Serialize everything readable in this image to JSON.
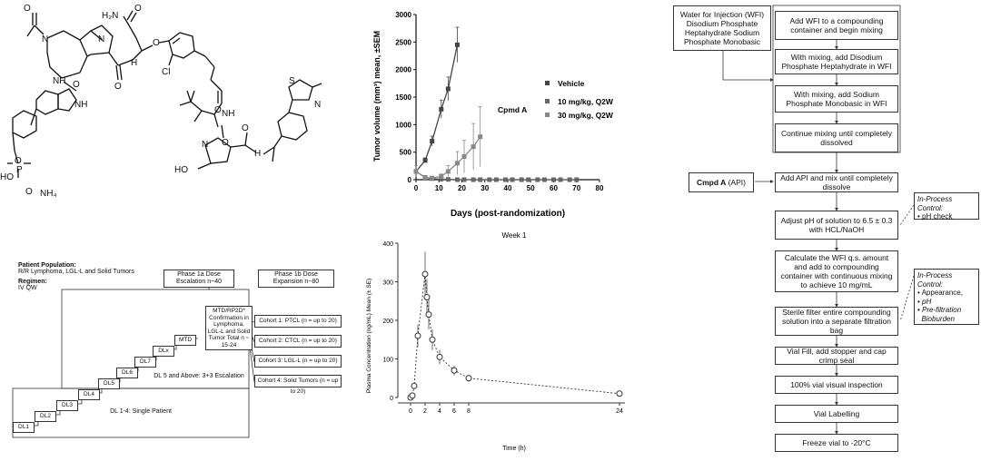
{
  "molecule": {
    "atoms": {
      "o_acetyl": "O",
      "n_ring1": "N",
      "h2n": "H₂N",
      "o_amide_top": "O",
      "n_ring2": "N",
      "o_ether": "O",
      "o_ring": "O",
      "nh_1": "NH",
      "nh_indole": "NH",
      "nh_2": "H",
      "o_carbonyl": "O",
      "cl": "Cl",
      "o_carbonyl2": "O",
      "s": "S",
      "n_thiazole": "N",
      "nh_3": "NH",
      "o_ketone": "O",
      "o_p": "O",
      "p": "P",
      "ho_p": "HO",
      "o_minus": "O",
      "nh4": "NH₄",
      "ho_pro": "HO",
      "n_pro": "N",
      "nh_4": "H",
      "o_pro": "O"
    }
  },
  "tumor_chart": {
    "chart_data": {
      "type": "line",
      "xlabel": "Days (post-randomization)",
      "ylabel": "Tumor volume (mm³) mean, ±SEM",
      "xlim": [
        0,
        80
      ],
      "ylim": [
        0,
        3000
      ],
      "xticks": [
        "0",
        "10",
        "20",
        "30",
        "40",
        "50",
        "60",
        "70",
        "80"
      ],
      "yticks": [
        "0",
        "500",
        "1000",
        "1500",
        "2000",
        "2500",
        "3000"
      ],
      "series": [
        {
          "name": "Vehicle",
          "color": "#444444",
          "x": [
            0,
            4,
            7,
            11,
            14,
            18
          ],
          "y": [
            150,
            350,
            700,
            1280,
            1650,
            2450
          ]
        },
        {
          "name": "10 mg/kg, Q2W",
          "color": "#666666",
          "x": [
            0,
            4,
            7,
            11,
            14,
            18,
            21,
            25,
            28,
            32,
            35,
            39,
            42,
            46,
            49,
            53,
            56,
            60,
            63,
            67,
            70
          ],
          "y": [
            150,
            40,
            20,
            10,
            5,
            0,
            0,
            0,
            0,
            0,
            0,
            0,
            0,
            0,
            0,
            0,
            0,
            0,
            0,
            0,
            0
          ]
        },
        {
          "name": "30 mg/kg, Q2W",
          "color": "#888888",
          "x": [
            0,
            4,
            7,
            11,
            14,
            18,
            21,
            25,
            28
          ],
          "y": [
            150,
            40,
            30,
            60,
            150,
            300,
            420,
            600,
            780
          ]
        }
      ],
      "cpmd_label": "Cpmd A"
    }
  },
  "pk_chart": {
    "chart_data": {
      "type": "line",
      "title": "Week 1",
      "xlabel": "Time (h)",
      "ylabel": "Plasma Concentration (ng/mL) Mean (± SE)",
      "xlim": [
        0,
        24
      ],
      "ylim": [
        0,
        400
      ],
      "xticks": [
        "0",
        "2",
        "4",
        "6",
        "8",
        "24"
      ],
      "yticks": [
        "0",
        "100",
        "200",
        "300",
        "400"
      ],
      "x": [
        0,
        0.25,
        0.5,
        1,
        2,
        2.25,
        2.5,
        3,
        4,
        6,
        8,
        24
      ],
      "y": [
        0,
        5,
        30,
        160,
        320,
        260,
        215,
        150,
        105,
        70,
        50,
        10
      ]
    }
  },
  "trial_design": {
    "phase1a_title": "Phase 1a Dose Escalation n~40",
    "phase1b_title": "Phase 1b Dose Expansion n~80",
    "population_label": "Patient Population:",
    "population_value": "R/R Lymphoma, LGL-L and Solid Tumors",
    "regimen_label": "Regimen:",
    "regimen_value": "IV QW",
    "mtd_box": "MTD/RP2D* Confirmation in Lymphoma, LGL-L and Solid Tumor Total n ~ 15-24",
    "dl5_caption": "DL 5 and Above: 3+3 Escalation",
    "dl14_caption": "DL 1-4: Single Patient",
    "steps": [
      "DL1",
      "DL2",
      "DL3",
      "DL4",
      "DL5",
      "DL6",
      "DL7",
      "DLx",
      "MTD"
    ],
    "cohorts": [
      "Cohort 1: PTCL (n = up to 20)",
      "Cohort 2: CTCL (n = up to 20)",
      "Cohort 3: LGL-L (n = up to 20)",
      "Cohort 4: Solid Tumors (n = up to 20)"
    ]
  },
  "flowchart": {
    "inputs": "Water for Injection (WFI) Disodium Phosphate Heptahydrate Sodium Phosphate Monobasic",
    "steps": [
      "Add WFI to a compounding container and begin mixing",
      "With mixing, add Disodium Phosphate Heptahydrate in WFI",
      "With mixing, add Sodium Phosphate Monobasic in WFI",
      "Continue mixing until completely dissolved",
      "Add API and mix until completely dissolve",
      "Adjust pH of solution to 6.5 ± 0.3 with HCL/NaOH",
      "Calculate the WFI q.s. amount and add to compounding container with continuous mixing to achieve 10 mg/mL",
      "Sterile filter entire compounding solution into a separate filtration bag",
      "Vial Fill, add stopper and cap crimp seal",
      "100% vial visual inspection",
      "Vial Labelling",
      "Freeze vial to -20°C"
    ],
    "api_bold": "Cmpd A",
    "api_rest": "(API)",
    "ipc1_title": "In-Process Control:",
    "ipc1_items": [
      "• pH check"
    ],
    "ipc2_title": "In-Process Control:",
    "ipc2_items": [
      "• Appearance,",
      "• pH",
      "• Pre-filtration",
      "  Bioburden"
    ]
  }
}
